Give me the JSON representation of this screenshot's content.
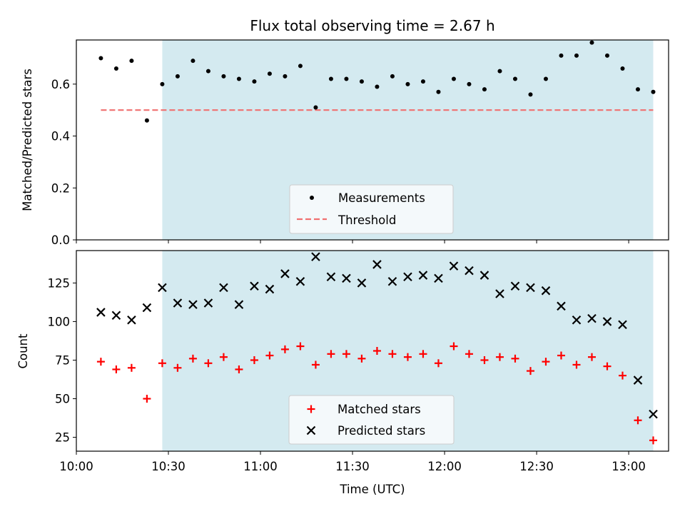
{
  "chart_data": [
    {
      "type": "scatter",
      "title": "Flux total observing time = 2.67 h",
      "ylabel": "Matched/Predicted stars",
      "xlabel": "",
      "ylim": [
        0,
        0.77
      ],
      "xlim": [
        "10:00",
        "13:13"
      ],
      "yticks": [
        "0.0",
        "0.2",
        "0.4",
        "0.6"
      ],
      "ytick_values": [
        0,
        0.2,
        0.4,
        0.6
      ],
      "shaded_region": [
        "10:28",
        "13:08"
      ],
      "shaded_color": "#d4eaf0",
      "threshold": {
        "name": "Threshold",
        "value": 0.5,
        "x": [
          "10:08",
          "13:08"
        ],
        "color": "#f07070"
      },
      "series": [
        {
          "name": "Measurements",
          "color": "#000000",
          "x": [
            "10:08",
            "10:13",
            "10:18",
            "10:23",
            "10:28",
            "10:33",
            "10:38",
            "10:43",
            "10:48",
            "10:53",
            "10:58",
            "11:03",
            "11:08",
            "11:13",
            "11:18",
            "11:23",
            "11:28",
            "11:33",
            "11:38",
            "11:43",
            "11:48",
            "11:53",
            "11:58",
            "12:03",
            "12:08",
            "12:13",
            "12:18",
            "12:23",
            "12:28",
            "12:33",
            "12:38",
            "12:43",
            "12:48",
            "12:53",
            "12:58",
            "13:03",
            "13:08"
          ],
          "values": [
            0.7,
            0.66,
            0.69,
            0.46,
            0.6,
            0.63,
            0.69,
            0.65,
            0.63,
            0.62,
            0.61,
            0.64,
            0.63,
            0.67,
            0.51,
            0.62,
            0.62,
            0.61,
            0.59,
            0.63,
            0.6,
            0.61,
            0.57,
            0.62,
            0.6,
            0.58,
            0.65,
            0.62,
            0.56,
            0.62,
            0.71,
            0.71,
            0.76,
            0.71,
            0.66,
            0.58,
            0.57
          ]
        }
      ],
      "legend": [
        "Measurements",
        "Threshold"
      ],
      "legend_position": "lower-center"
    },
    {
      "type": "scatter",
      "title": "",
      "ylabel": "Count",
      "xlabel": "Time (UTC)",
      "ylim": [
        16,
        146
      ],
      "xlim": [
        "10:00",
        "13:13"
      ],
      "yticks": [
        "25",
        "50",
        "75",
        "100",
        "125"
      ],
      "ytick_values": [
        25,
        50,
        75,
        100,
        125
      ],
      "xticks": [
        "10:00",
        "10:30",
        "11:00",
        "11:30",
        "12:00",
        "12:30",
        "13:00"
      ],
      "shaded_region": [
        "10:28",
        "13:08"
      ],
      "shaded_color": "#d4eaf0",
      "series": [
        {
          "name": "Matched stars",
          "marker": "plus",
          "color": "#ff0000",
          "x": [
            "10:08",
            "10:13",
            "10:18",
            "10:23",
            "10:28",
            "10:33",
            "10:38",
            "10:43",
            "10:48",
            "10:53",
            "10:58",
            "11:03",
            "11:08",
            "11:13",
            "11:18",
            "11:23",
            "11:28",
            "11:33",
            "11:38",
            "11:43",
            "11:48",
            "11:53",
            "11:58",
            "12:03",
            "12:08",
            "12:13",
            "12:18",
            "12:23",
            "12:28",
            "12:33",
            "12:38",
            "12:43",
            "12:48",
            "12:53",
            "12:58",
            "13:03",
            "13:08"
          ],
          "values": [
            74,
            69,
            70,
            50,
            73,
            70,
            76,
            73,
            77,
            69,
            75,
            78,
            82,
            84,
            72,
            79,
            79,
            76,
            81,
            79,
            77,
            79,
            73,
            84,
            79,
            75,
            77,
            76,
            68,
            74,
            78,
            72,
            77,
            71,
            65,
            36,
            23
          ]
        },
        {
          "name": "Predicted stars",
          "marker": "x",
          "color": "#000000",
          "x": [
            "10:08",
            "10:13",
            "10:18",
            "10:23",
            "10:28",
            "10:33",
            "10:38",
            "10:43",
            "10:48",
            "10:53",
            "10:58",
            "11:03",
            "11:08",
            "11:13",
            "11:18",
            "11:23",
            "11:28",
            "11:33",
            "11:38",
            "11:43",
            "11:48",
            "11:53",
            "11:58",
            "12:03",
            "12:08",
            "12:13",
            "12:18",
            "12:23",
            "12:28",
            "12:33",
            "12:38",
            "12:43",
            "12:48",
            "12:53",
            "12:58",
            "13:03",
            "13:08"
          ],
          "values": [
            106,
            104,
            101,
            109,
            122,
            112,
            111,
            112,
            122,
            111,
            123,
            121,
            131,
            126,
            142,
            129,
            128,
            125,
            137,
            126,
            129,
            130,
            128,
            136,
            133,
            130,
            118,
            123,
            122,
            120,
            110,
            101,
            102,
            100,
            98,
            62,
            40
          ]
        }
      ],
      "legend": [
        "Matched stars",
        "Predicted stars"
      ],
      "legend_position": "lower-center"
    }
  ]
}
